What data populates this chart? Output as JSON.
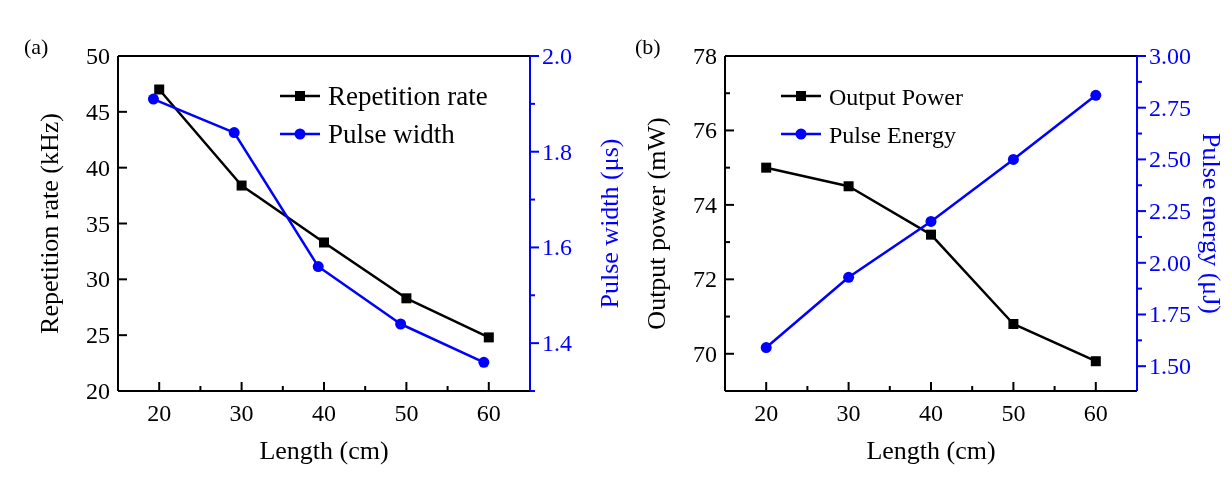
{
  "chart_data": [
    {
      "type": "line",
      "xlabel": "Length (cm)",
      "ylabel": "Repetition rate (kHz)",
      "y2label": "Pulse width (μs)",
      "annotations": [
        "(a)"
      ],
      "xlim": [
        15,
        65
      ],
      "xticks": [
        20,
        {
          "value": 25,
          "label": null
        },
        30,
        {
          "value": 35,
          "label": null
        },
        40,
        {
          "value": 45,
          "label": null
        },
        50,
        {
          "value": 55,
          "label": null
        },
        60
      ],
      "ylim": [
        20,
        50
      ],
      "yticks": [
        20,
        25,
        30,
        35,
        40,
        45,
        50
      ],
      "y2lim": [
        1.3,
        2.0
      ],
      "y2ticks": [
        {
          "value": 1.3,
          "label": null
        },
        1.4,
        {
          "value": 1.5,
          "label": null
        },
        1.6,
        {
          "value": 1.7,
          "label": null
        },
        1.8,
        {
          "value": 1.9,
          "label": null
        },
        {
          "value": 2,
          "label": "2.0"
        }
      ],
      "legend": "top right",
      "grid": false,
      "line_style": "solid",
      "series": [
        {
          "name": "Repetition rate",
          "color": "#000000",
          "marker": "square",
          "x": [
            20,
            30,
            40,
            50,
            60
          ],
          "values": [
            47.0,
            38.4,
            33.3,
            28.3,
            24.8
          ]
        },
        {
          "name": "Pulse width",
          "color": "#0000ff",
          "marker": "circle",
          "axis": "y2",
          "x": [
            19.3,
            29.1,
            39.3,
            49.3,
            59.4
          ],
          "values": [
            1.91,
            1.84,
            1.56,
            1.44,
            1.36
          ]
        }
      ]
    },
    {
      "type": "line",
      "xlabel": "Length (cm)",
      "ylabel": "Output power (mW)",
      "y2label": "Pulse energy (μJ)",
      "annotations": [
        "(b)"
      ],
      "xlim": [
        15,
        65
      ],
      "xticks": [
        20,
        {
          "value": 25,
          "label": null
        },
        30,
        {
          "value": 35,
          "label": null
        },
        40,
        {
          "value": 45,
          "label": null
        },
        50,
        {
          "value": 55,
          "label": null
        },
        60
      ],
      "ylim": [
        69,
        78
      ],
      "yticks": [
        70,
        {
          "value": 71,
          "label": null
        },
        72,
        {
          "value": 73,
          "label": null
        },
        74,
        {
          "value": 75,
          "label": null
        },
        76,
        {
          "value": 77,
          "label": null
        },
        78
      ],
      "y2lim": [
        1.38,
        3.0
      ],
      "y2ticks": [
        {
          "value": 1.5,
          "label": "1.50"
        },
        {
          "value": 1.625,
          "label": null
        },
        1.75,
        {
          "value": 1.875,
          "label": null
        },
        {
          "value": 2,
          "label": "2.00"
        },
        {
          "value": 2.125,
          "label": null
        },
        2.25,
        {
          "value": 2.375,
          "label": null
        },
        {
          "value": 2.5,
          "label": "2.50"
        },
        {
          "value": 2.625,
          "label": null
        },
        2.75,
        {
          "value": 2.875,
          "label": null
        },
        {
          "value": 3,
          "label": "3.00"
        }
      ],
      "legend": "top",
      "grid": false,
      "line_style": "solid",
      "series": [
        {
          "name": "Output Power",
          "color": "#000000",
          "marker": "square",
          "x": [
            20,
            30,
            40,
            50,
            60
          ],
          "values": [
            75.0,
            74.5,
            73.2,
            70.8,
            69.8
          ]
        },
        {
          "name": "Pulse Energy",
          "color": "#0000ff",
          "marker": "circle",
          "axis": "y2",
          "x": [
            20,
            30,
            40,
            50,
            60
          ],
          "values": [
            1.59,
            1.93,
            2.2,
            2.5,
            2.81
          ]
        }
      ]
    }
  ]
}
